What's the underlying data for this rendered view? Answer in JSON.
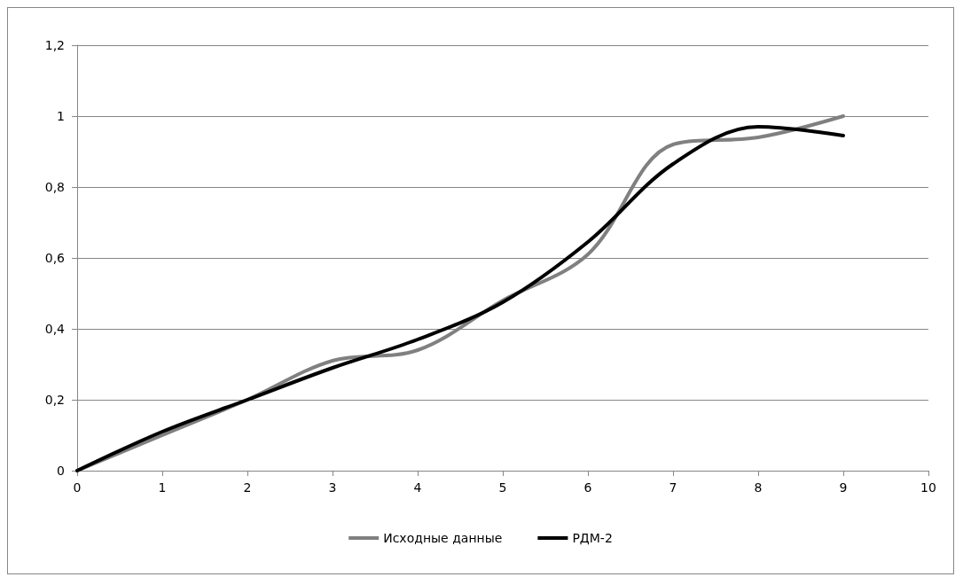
{
  "chart_data": {
    "type": "line",
    "x": [
      0,
      1,
      2,
      3,
      4,
      5,
      6,
      7,
      8,
      9
    ],
    "series": [
      {
        "name": "Исходные данные",
        "color": "#808080",
        "values": [
          0,
          0.1,
          0.2,
          0.31,
          0.34,
          0.48,
          0.61,
          0.92,
          0.94,
          1.0
        ]
      },
      {
        "name": "РДМ-2",
        "color": "#000000",
        "values": [
          0,
          0.11,
          0.2,
          0.29,
          0.37,
          0.475,
          0.645,
          0.865,
          0.97,
          0.945
        ]
      }
    ],
    "xlim": [
      0,
      10
    ],
    "xticks": [
      0,
      1,
      2,
      3,
      4,
      5,
      6,
      7,
      8,
      9,
      10
    ],
    "ylim": [
      0,
      1.2
    ],
    "yticks": [
      0,
      {
        "value": 0.2,
        "label": "0,2"
      },
      {
        "value": 0.4,
        "label": "0,4"
      },
      {
        "value": 0.6,
        "label": "0,6"
      },
      {
        "value": 0.8,
        "label": "0,8"
      },
      1,
      {
        "value": 1.2,
        "label": "1,2"
      }
    ],
    "grid": "y",
    "legend": "bottom",
    "marker": "none",
    "line_style": "solid"
  }
}
